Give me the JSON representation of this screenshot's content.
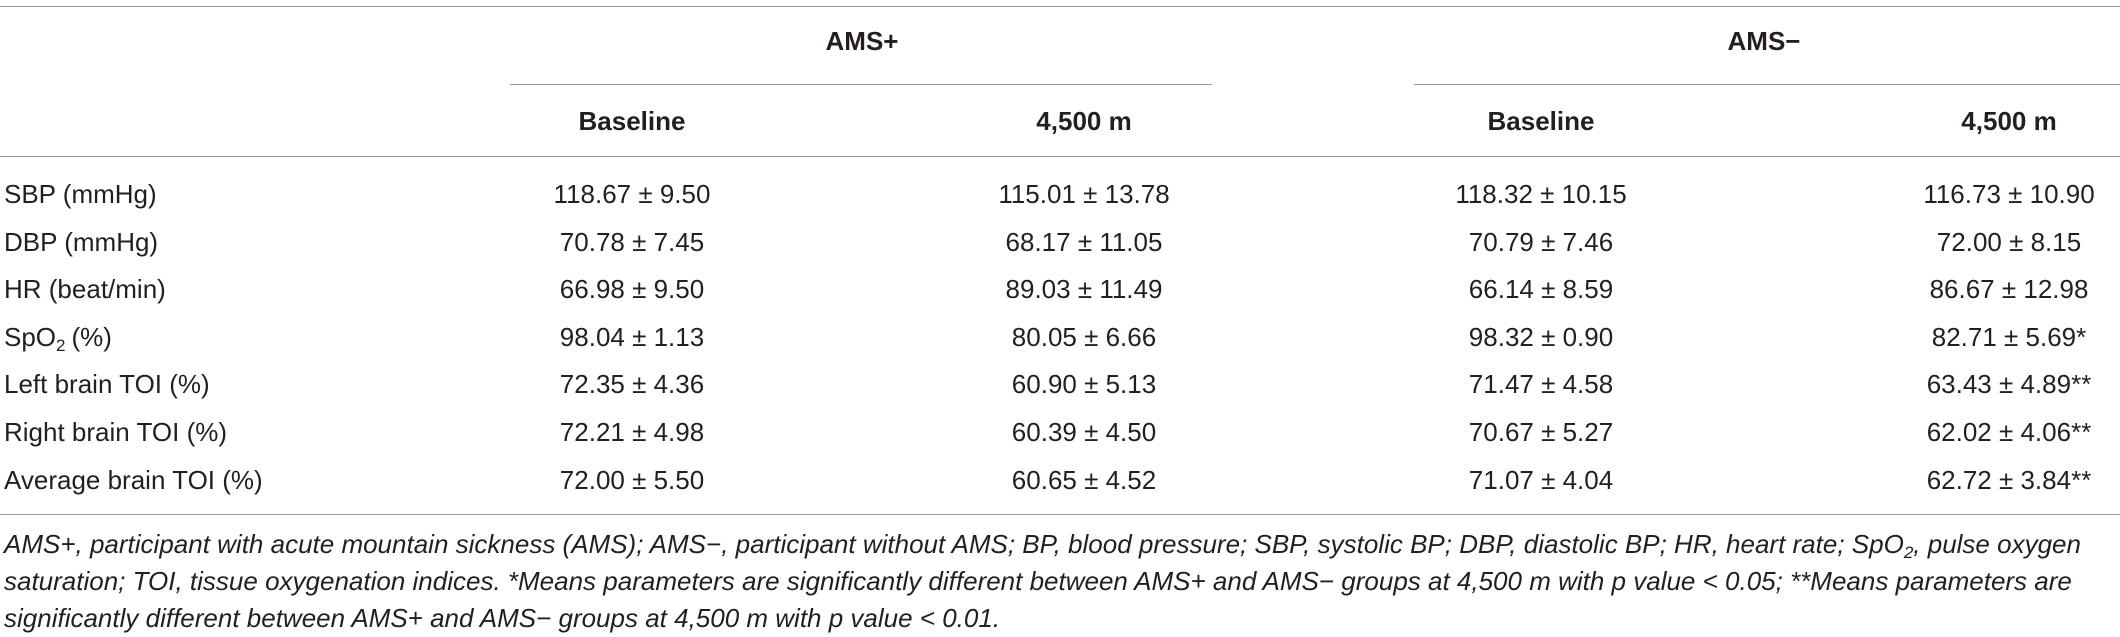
{
  "table": {
    "groups": [
      "AMS+",
      "AMS−"
    ],
    "columns": [
      "Baseline",
      "4,500 m",
      "Baseline",
      "4,500 m"
    ],
    "rows": [
      {
        "label": "SBP (mmHg)",
        "cells": [
          "118.67 ± 9.50",
          "115.01 ± 13.78",
          "118.32 ± 10.15",
          "116.73 ± 10.90"
        ]
      },
      {
        "label": "DBP (mmHg)",
        "cells": [
          "70.78 ± 7.45",
          "68.17 ± 11.05",
          "70.79 ± 7.46",
          "72.00 ± 8.15"
        ]
      },
      {
        "label": "HR (beat/min)",
        "cells": [
          "66.98 ± 9.50",
          "89.03 ± 11.49",
          "66.14 ± 8.59",
          "86.67 ± 12.98"
        ]
      },
      {
        "label": "SpO",
        "label_sub": "2",
        "label_after": "(%)",
        "cells": [
          "98.04 ± 1.13",
          "80.05 ± 6.66",
          "98.32 ± 0.90",
          "82.71 ± 5.69*"
        ]
      },
      {
        "label": "Left brain TOI (%)",
        "cells": [
          "72.35 ± 4.36",
          "60.90 ± 5.13",
          "71.47 ± 4.58",
          "63.43 ± 4.89**"
        ]
      },
      {
        "label": "Right brain TOI (%)",
        "cells": [
          "72.21 ± 4.98",
          "60.39 ± 4.50",
          "70.67 ± 5.27",
          "62.02 ± 4.06**"
        ]
      },
      {
        "label": "Average brain TOI (%)",
        "cells": [
          "72.00 ± 5.50",
          "60.65 ± 4.52",
          "71.07 ± 4.04",
          "62.72 ± 3.84**"
        ]
      }
    ],
    "footnote": [
      "AMS+, participant with acute mountain sickness (AMS); AMS−, participant without AMS; BP, blood pressure; SBP, systolic BP; DBP, diastolic BP; HR, heart rate; SpO",
      "2",
      ", pulse oxygen saturation; TOI, tissue oxygenation indices. *Means parameters are significantly different between AMS+ and AMS− groups at 4,500 m with p value < 0.05; **Means parameters are significantly different between AMS+ and AMS− groups at 4,500 m with p value < 0.01."
    ]
  }
}
